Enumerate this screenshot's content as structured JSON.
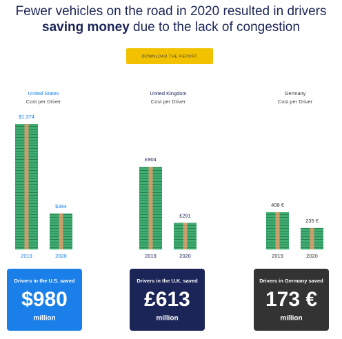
{
  "header": {
    "title_start": "Fewer vehicles on the road in 2020 resulted in drivers",
    "title_bold": "saving money",
    "title_end": "due to the lack of congestion",
    "button": "DOWNLOAD THE REPORT"
  },
  "chart_data": [
    {
      "type": "bar",
      "title": "United States",
      "subtitle": "Cost per Driver",
      "color": "#1a7fe8",
      "card_color": "#1a7fe8",
      "categories": [
        "2019",
        "2020"
      ],
      "values": [
        1374,
        394
      ],
      "value_labels": [
        "$1,374",
        "$394"
      ],
      "summary": {
        "label": "Drivers in the U.S. saved",
        "amount": "$980",
        "unit": "million"
      }
    },
    {
      "type": "bar",
      "title": "United Kingdom",
      "subtitle": "Cost per Driver",
      "color": "#1b2557",
      "card_color": "#1b2557",
      "categories": [
        "2019",
        "2020"
      ],
      "values": [
        904,
        291
      ],
      "value_labels": [
        "£904",
        "£291"
      ],
      "summary": {
        "label": "Drivers in the U.K. saved",
        "amount": "£613",
        "unit": "million"
      }
    },
    {
      "type": "bar",
      "title": "Germany",
      "subtitle": "Cost per Driver",
      "color": "#333333",
      "card_color": "#333333",
      "categories": [
        "2019",
        "2020"
      ],
      "values": [
        408,
        235
      ],
      "value_labels": [
        "408 €",
        "235 €"
      ],
      "summary": {
        "label": "Drivers in Germany saved",
        "amount": "173 €",
        "unit": "million"
      }
    }
  ]
}
